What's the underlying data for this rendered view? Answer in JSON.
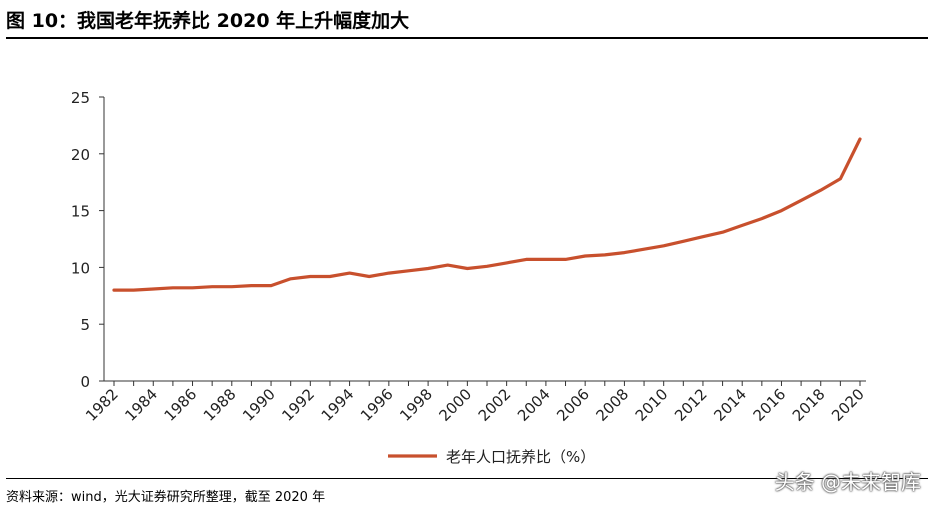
{
  "figure": {
    "title": "图 10：我国老年抚养比 2020 年上升幅度加大",
    "source": "资料来源：wind，光大证券研究所整理，截至 2020 年",
    "watermark": "头条 @未来智库"
  },
  "colors": {
    "line": "#c8502d",
    "axis": "#333333"
  },
  "chart_data": {
    "type": "line",
    "title": "",
    "xlabel": "",
    "ylabel": "",
    "ylim": [
      0,
      25
    ],
    "yticks": [
      0,
      5,
      10,
      15,
      20,
      25
    ],
    "grid": false,
    "legend_position": "bottom",
    "x": [
      1982,
      1983,
      1984,
      1985,
      1986,
      1987,
      1988,
      1989,
      1990,
      1991,
      1992,
      1993,
      1994,
      1995,
      1996,
      1997,
      1998,
      1999,
      2000,
      2001,
      2002,
      2003,
      2004,
      2005,
      2006,
      2007,
      2008,
      2009,
      2010,
      2011,
      2012,
      2013,
      2014,
      2015,
      2016,
      2017,
      2018,
      2019,
      2020
    ],
    "xticks": [
      "1982",
      "1984",
      "1986",
      "1988",
      "1990",
      "1992",
      "1994",
      "1996",
      "1998",
      "2000",
      "2002",
      "2004",
      "2006",
      "2008",
      "2010",
      "2012",
      "2014",
      "2016",
      "2018",
      "2020"
    ],
    "series": [
      {
        "name": "老年人口抚养比（%）",
        "values": [
          8.0,
          8.0,
          8.1,
          8.2,
          8.2,
          8.3,
          8.3,
          8.4,
          8.4,
          9.0,
          9.2,
          9.2,
          9.5,
          9.2,
          9.5,
          9.7,
          9.9,
          10.2,
          9.9,
          10.1,
          10.4,
          10.7,
          10.7,
          10.7,
          11.0,
          11.1,
          11.3,
          11.6,
          11.9,
          12.3,
          12.7,
          13.1,
          13.7,
          14.3,
          15.0,
          15.9,
          16.8,
          17.8,
          21.3
        ]
      }
    ]
  }
}
